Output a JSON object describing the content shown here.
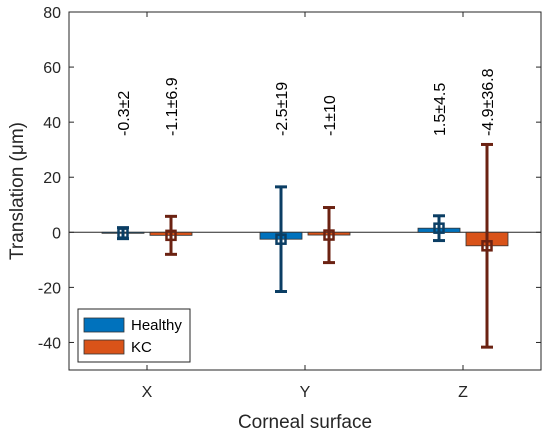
{
  "chart_data": {
    "type": "bar",
    "categories": [
      "X",
      "Y",
      "Z"
    ],
    "series": [
      {
        "name": "Healthy",
        "color": "#0072BD",
        "error_color": "#0B3E64",
        "values": [
          -0.3,
          -2.5,
          1.5
        ],
        "errors": [
          2,
          19,
          4.5
        ],
        "labels": [
          "-0.3±2",
          "-2.5±19",
          "1.5±4.5"
        ]
      },
      {
        "name": "KC",
        "color": "#D95319",
        "error_color": "#6B2212",
        "values": [
          -1.1,
          -1,
          -4.9
        ],
        "errors": [
          6.9,
          10,
          36.8
        ],
        "labels": [
          "-1.1±6.9",
          "-1±10",
          "-4.9±36.8"
        ]
      }
    ],
    "xlabel": "Corneal surface",
    "ylabel": "Translation (μm)",
    "ylim": [
      -50,
      80
    ],
    "yticks": [
      "-40",
      "-20",
      "0",
      "20",
      "40",
      "60",
      "80"
    ],
    "grid": false,
    "legend": "bottom-left",
    "zero_line": true
  }
}
